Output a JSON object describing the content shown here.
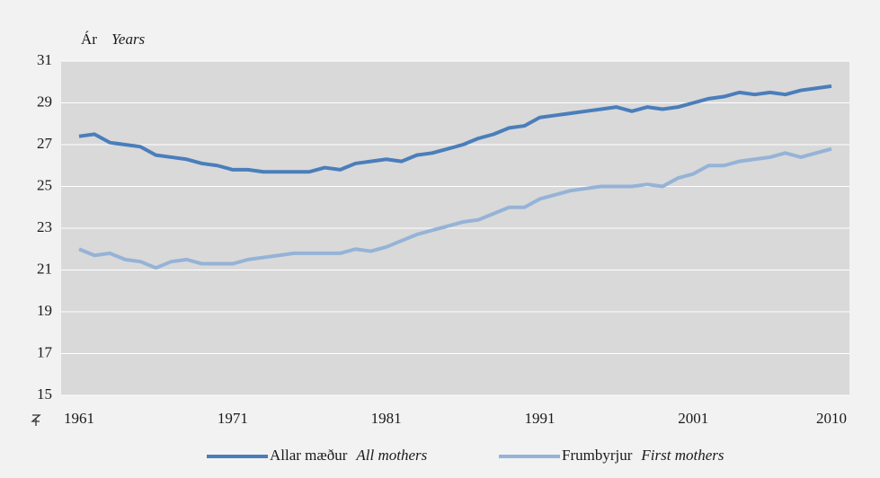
{
  "chart_data": {
    "type": "line",
    "y_label": "Ár",
    "y_label_en": "Years",
    "x": [
      1961,
      1962,
      1963,
      1964,
      1965,
      1966,
      1967,
      1968,
      1969,
      1970,
      1971,
      1972,
      1973,
      1974,
      1975,
      1976,
      1977,
      1978,
      1979,
      1980,
      1981,
      1982,
      1983,
      1984,
      1985,
      1986,
      1987,
      1988,
      1989,
      1990,
      1991,
      1992,
      1993,
      1994,
      1995,
      1996,
      1997,
      1998,
      1999,
      2000,
      2001,
      2002,
      2003,
      2004,
      2005,
      2006,
      2007,
      2008,
      2009,
      2010
    ],
    "series": [
      {
        "name": "Allar mæður",
        "name_en": "All mothers",
        "color": "#4a7ebb",
        "values": [
          27.4,
          27.5,
          27.1,
          27.0,
          26.9,
          26.5,
          26.4,
          26.3,
          26.1,
          26.0,
          25.8,
          25.8,
          25.7,
          25.7,
          25.7,
          25.7,
          25.9,
          25.8,
          26.1,
          26.2,
          26.3,
          26.2,
          26.5,
          26.6,
          26.8,
          27.0,
          27.3,
          27.5,
          27.8,
          27.9,
          28.3,
          28.4,
          28.5,
          28.6,
          28.7,
          28.8,
          28.6,
          28.8,
          28.7,
          28.8,
          29.0,
          29.2,
          29.3,
          29.5,
          29.4,
          29.5,
          29.4,
          29.6,
          29.7,
          29.8
        ]
      },
      {
        "name": "Frumbyrjur",
        "name_en": "First mothers",
        "color": "#95b3d7",
        "values": [
          22.0,
          21.7,
          21.8,
          21.5,
          21.4,
          21.1,
          21.4,
          21.5,
          21.3,
          21.3,
          21.3,
          21.5,
          21.6,
          21.7,
          21.8,
          21.8,
          21.8,
          21.8,
          22.0,
          21.9,
          22.1,
          22.4,
          22.7,
          22.9,
          23.1,
          23.3,
          23.4,
          23.7,
          24.0,
          24.0,
          24.4,
          24.6,
          24.8,
          24.9,
          25.0,
          25.0,
          25.0,
          25.1,
          25.0,
          25.4,
          25.6,
          26.0,
          26.0,
          26.2,
          26.3,
          26.4,
          26.6,
          26.4,
          26.6,
          26.8
        ]
      }
    ],
    "xlim": [
      1961,
      2010
    ],
    "xticks": [
      1961,
      1971,
      1981,
      1991,
      2001,
      2010
    ],
    "ylim": [
      15,
      31
    ],
    "yticks": [
      15,
      17,
      19,
      21,
      23,
      25,
      27,
      29,
      31
    ],
    "grid": true
  }
}
